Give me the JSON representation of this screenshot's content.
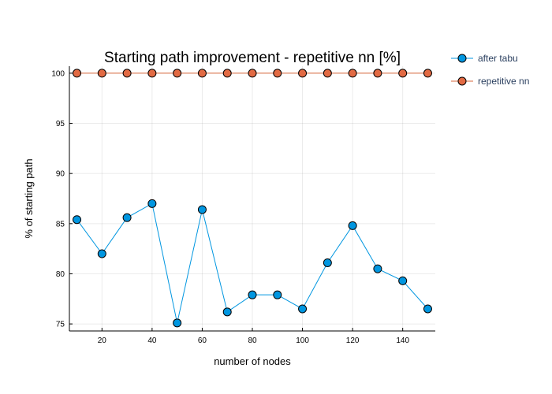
{
  "chart_data": {
    "type": "line",
    "title": "Starting path improvement - repetitive nn [%]",
    "xlabel": "number of nodes",
    "ylabel": "% of starting path",
    "x": [
      10,
      20,
      30,
      40,
      50,
      60,
      70,
      80,
      90,
      100,
      110,
      120,
      130,
      140,
      150
    ],
    "xlim": [
      7,
      153
    ],
    "ylim": [
      74.3,
      100.7
    ],
    "xticks": [
      20,
      40,
      60,
      80,
      100,
      120,
      140
    ],
    "yticks": [
      75,
      80,
      85,
      90,
      95,
      100
    ],
    "grid": true,
    "legend_position": "top-right",
    "series": [
      {
        "name": "after tabu",
        "color": "#0096E0",
        "marker_color": "#0096E0",
        "values": [
          85.4,
          82.0,
          85.6,
          87.0,
          75.1,
          86.4,
          76.2,
          77.9,
          77.9,
          76.5,
          81.1,
          84.8,
          80.5,
          79.3,
          76.5
        ]
      },
      {
        "name": "repetitive nn",
        "color": "#D9693C",
        "marker_color": "#E26A43",
        "values": [
          100,
          100,
          100,
          100,
          100,
          100,
          100,
          100,
          100,
          100,
          100,
          100,
          100,
          100,
          100
        ]
      }
    ]
  }
}
